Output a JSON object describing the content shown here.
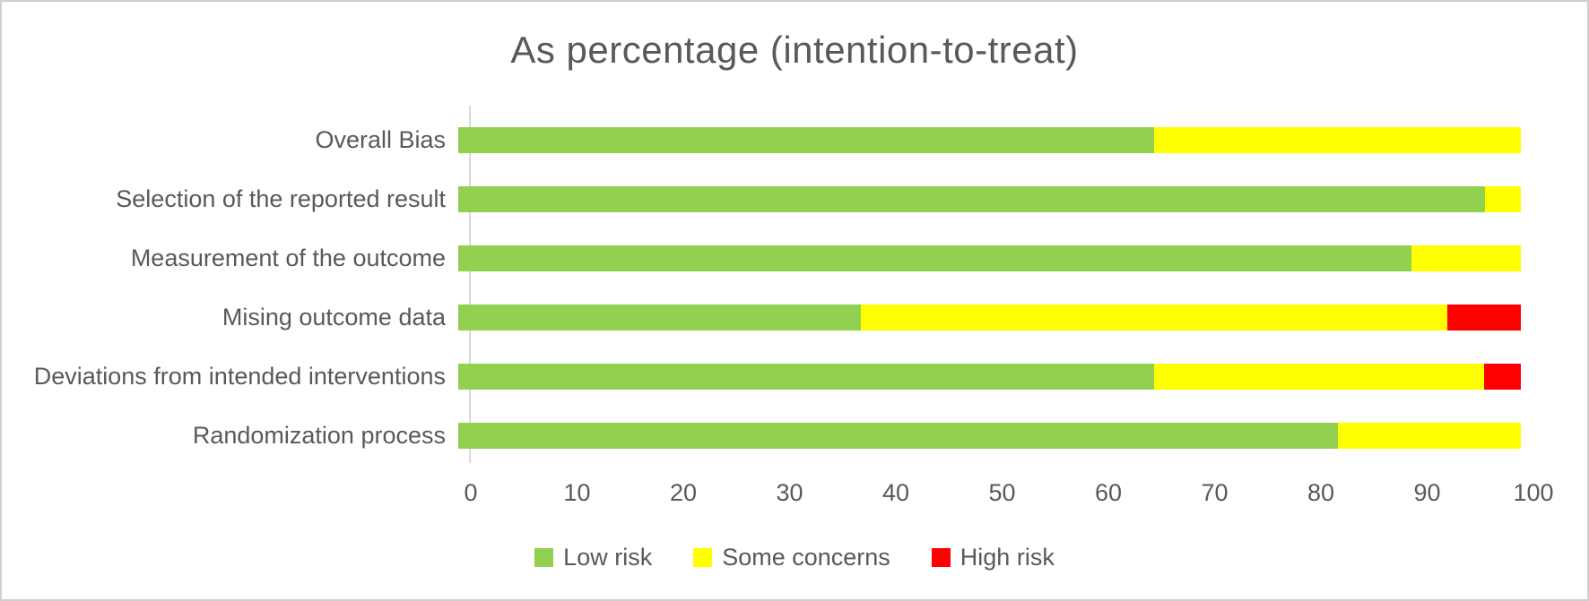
{
  "chart_data": {
    "type": "bar",
    "orientation": "horizontal-stacked",
    "title": "As percentage (intention-to-treat)",
    "categories": [
      "Overall Bias",
      "Selection of the reported result",
      "Measurement of the outcome",
      "Mising outcome data",
      "Deviations from intended interventions",
      "Randomization process"
    ],
    "series": [
      {
        "name": "Low risk",
        "color": "#92d050",
        "values": [
          65.5,
          96.6,
          89.7,
          37.9,
          65.5,
          82.8
        ]
      },
      {
        "name": "Some concerns",
        "color": "#ffff00",
        "values": [
          34.5,
          3.4,
          10.3,
          55.2,
          31.0,
          17.2
        ]
      },
      {
        "name": "High risk",
        "color": "#ff0000",
        "values": [
          0,
          0,
          0,
          6.9,
          3.5,
          0
        ]
      }
    ],
    "x_ticks": [
      "0",
      "10",
      "20",
      "30",
      "40",
      "50",
      "60",
      "70",
      "80",
      "90",
      "100"
    ],
    "xlim": [
      0,
      100
    ],
    "xlabel": "",
    "ylabel": "",
    "grid": false,
    "legend_position": "bottom"
  },
  "colors": {
    "text": "#595959",
    "axis_line": "#d9d9d9",
    "frame_border": "#cfcfcf",
    "background": "#ffffff"
  }
}
